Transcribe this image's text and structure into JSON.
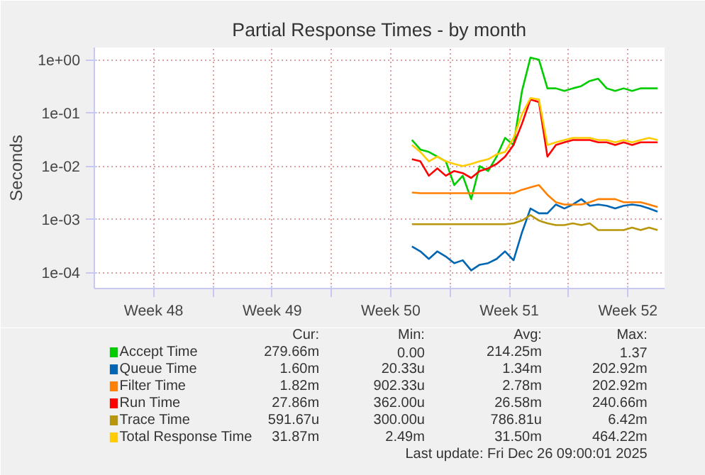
{
  "chart_data": {
    "type": "line",
    "title": "Partial Response Times - by month",
    "ylabel": "Seconds",
    "log": "y",
    "grid": true,
    "legend": "bottom",
    "marker": "none",
    "line_style": "solid",
    "xlim": [
      "2025-11-24T00:00",
      "2025-12-27T16:00"
    ],
    "xticks": [
      {
        "value": "2025-11-27T12:00",
        "label": "Week 48"
      },
      {
        "value": "2025-12-01T00:00",
        "label": null
      },
      {
        "value": "2025-12-04T12:00",
        "label": "Week 49"
      },
      {
        "value": "2025-12-08T00:00",
        "label": null
      },
      {
        "value": "2025-12-11T12:00",
        "label": "Week 50"
      },
      {
        "value": "2025-12-15T00:00",
        "label": null
      },
      {
        "value": "2025-12-18T12:00",
        "label": "Week 51"
      },
      {
        "value": "2025-12-22T00:00",
        "label": null
      },
      {
        "value": "2025-12-25T12:00",
        "label": "Week 52"
      }
    ],
    "ylim": [
      5e-05,
      1.7
    ],
    "yticks": [
      {
        "value": 0.0001,
        "label": "1e-04"
      },
      {
        "value": 0.001,
        "label": "1e-03"
      },
      {
        "value": 0.01,
        "label": "1e-02"
      },
      {
        "value": 0.1,
        "label": "1e-01"
      },
      {
        "value": 1,
        "label": "1e+00"
      }
    ],
    "x": [
      "2025-12-12T18:00",
      "2025-12-13T06:00",
      "2025-12-13T18:00",
      "2025-12-14T06:00",
      "2025-12-14T18:00",
      "2025-12-15T06:00",
      "2025-12-15T18:00",
      "2025-12-16T06:00",
      "2025-12-16T18:00",
      "2025-12-17T06:00",
      "2025-12-17T18:00",
      "2025-12-18T06:00",
      "2025-12-18T18:00",
      "2025-12-19T06:00",
      "2025-12-19T18:00",
      "2025-12-20T06:00",
      "2025-12-20T18:00",
      "2025-12-21T06:00",
      "2025-12-21T18:00",
      "2025-12-22T06:00",
      "2025-12-22T18:00",
      "2025-12-23T06:00",
      "2025-12-23T18:00",
      "2025-12-24T06:00",
      "2025-12-24T18:00",
      "2025-12-25T06:00",
      "2025-12-25T18:00",
      "2025-12-26T06:00",
      "2025-12-26T18:00",
      "2025-12-27T06:00"
    ],
    "series": [
      {
        "name": "Accept Time",
        "color": "#00cc00",
        "values": [
          0.031,
          0.0205,
          0.0185,
          0.0151,
          0.0123,
          0.0044,
          0.0066,
          0.0024,
          0.01,
          0.0081,
          0.0151,
          0.034,
          0.025,
          0.26,
          1.1,
          1.0,
          0.29,
          0.29,
          0.26,
          0.29,
          0.32,
          0.4,
          0.44,
          0.29,
          0.26,
          0.29,
          0.26,
          0.29,
          0.29,
          0.29
        ]
      },
      {
        "name": "Queue Time",
        "color": "#0066b3",
        "values": [
          0.00031,
          0.00025,
          0.00018,
          0.00025,
          0.0002,
          0.00015,
          0.00017,
          0.00011,
          0.00014,
          0.00015,
          0.00018,
          0.00025,
          0.00017,
          0.00057,
          0.0016,
          0.0013,
          0.0013,
          0.0019,
          0.0016,
          0.0019,
          0.0024,
          0.0018,
          0.0019,
          0.0018,
          0.0016,
          0.0018,
          0.0019,
          0.0018,
          0.0016,
          0.0014
        ]
      },
      {
        "name": "Filter Time",
        "color": "#ff8000",
        "values": [
          0.0032,
          0.0031,
          0.0031,
          0.0031,
          0.0031,
          0.0031,
          0.0031,
          0.0031,
          0.0031,
          0.0031,
          0.0031,
          0.0031,
          0.0031,
          0.0036,
          0.004,
          0.0044,
          0.0029,
          0.0021,
          0.0019,
          0.0019,
          0.0019,
          0.0021,
          0.0024,
          0.0024,
          0.0024,
          0.0021,
          0.0021,
          0.0021,
          0.0019,
          0.0017
        ]
      },
      {
        "name": "Run Time",
        "color": "#ff0000",
        "values": [
          0.0135,
          0.0123,
          0.0066,
          0.0091,
          0.0066,
          0.0081,
          0.0074,
          0.006,
          0.0081,
          0.0091,
          0.011,
          0.0151,
          0.025,
          0.063,
          0.18,
          0.16,
          0.0151,
          0.025,
          0.028,
          0.031,
          0.031,
          0.031,
          0.028,
          0.028,
          0.025,
          0.028,
          0.025,
          0.028,
          0.028,
          0.028
        ]
      },
      {
        "name": "Trace Time",
        "color": "#b8960b",
        "values": [
          0.00081,
          0.00081,
          0.00081,
          0.00081,
          0.00081,
          0.00081,
          0.00081,
          0.00081,
          0.00081,
          0.00081,
          0.00081,
          0.00081,
          0.00084,
          0.00095,
          0.0012,
          0.00095,
          0.00084,
          0.00078,
          0.00078,
          0.00084,
          0.00078,
          0.00084,
          0.00063,
          0.00063,
          0.00063,
          0.00063,
          0.0007,
          0.00063,
          0.0007,
          0.00063
        ]
      },
      {
        "name": "Total Response Time",
        "color": "#ffcc00",
        "values": [
          0.025,
          0.0185,
          0.0123,
          0.0151,
          0.0123,
          0.011,
          0.01,
          0.011,
          0.0123,
          0.0135,
          0.0166,
          0.0185,
          0.034,
          0.095,
          0.19,
          0.18,
          0.025,
          0.028,
          0.031,
          0.034,
          0.034,
          0.034,
          0.031,
          0.031,
          0.028,
          0.031,
          0.028,
          0.031,
          0.034,
          0.031
        ]
      }
    ],
    "annotations": [
      "Cur:",
      "Min:",
      "Avg:",
      "Max:",
      "279.66m",
      "0.00",
      "214.25m",
      "1.37",
      "1.60m",
      "20.33u",
      "1.34m",
      "202.92m",
      "1.82m",
      "902.33u",
      "2.78m",
      "202.92m",
      "27.86m",
      "362.00u",
      "26.58m",
      "240.66m",
      "591.67u",
      "300.00u",
      "786.81u",
      "6.42m",
      "31.87m",
      "2.49m",
      "31.50m",
      "464.22m",
      "Last update: Fri Dec 26 09:00:01 2025"
    ]
  }
}
